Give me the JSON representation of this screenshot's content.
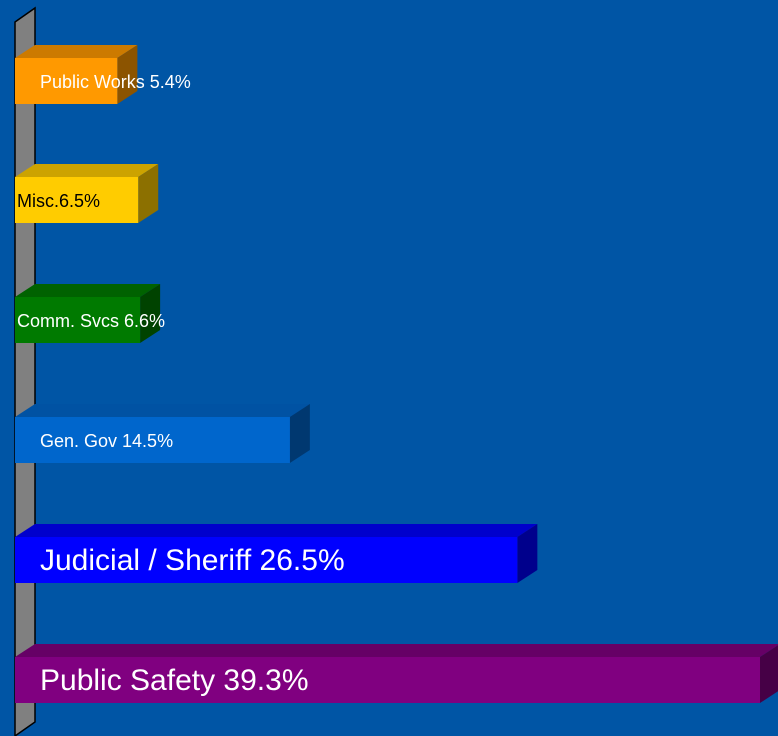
{
  "chart_data": {
    "type": "bar",
    "orientation": "horizontal",
    "values": [
      5.4,
      6.5,
      6.6,
      14.5,
      26.5,
      39.3
    ],
    "value_labels": [
      "Public Works 5.4%",
      "Misc.6.5%",
      "Comm. Svcs 6.6%",
      "Gen. Gov 14.5%",
      "Judicial / Sheriff 26.5%",
      "Public Safety 39.3%"
    ],
    "colors": [
      "#ff9900",
      "#ffcc00",
      "#007a00",
      "#0066cc",
      "#0000ff",
      "#800080"
    ]
  }
}
